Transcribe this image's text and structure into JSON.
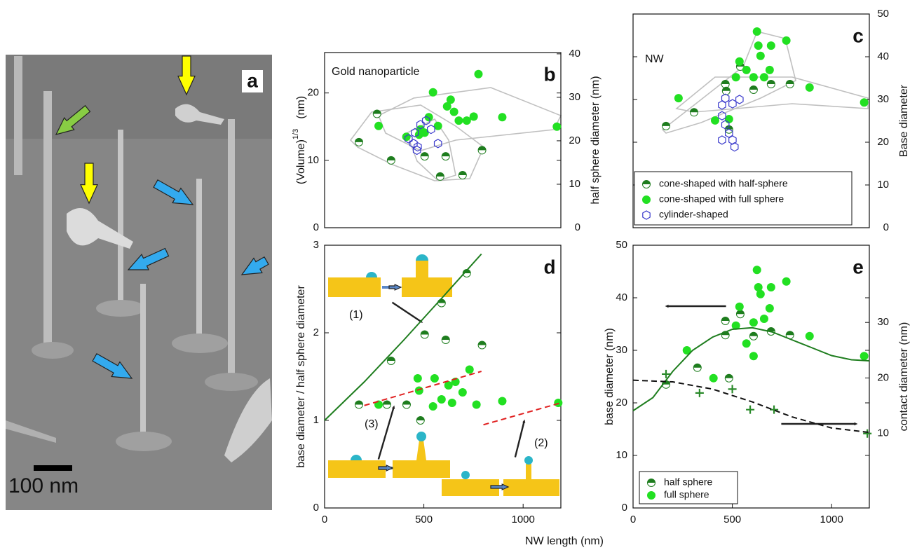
{
  "figure": {
    "panel_a": {
      "label": "a",
      "scale_bar": "100 nm"
    },
    "shared_xlabel": "NW length (nm)"
  },
  "chart_data": [
    {
      "type": "scatter",
      "label": "b",
      "title": "Gold nanoparticle",
      "ylabel": "(Volume)",
      "ylabel_exponent": "1/3",
      "ylabel_unit": "(nm)",
      "y2label": "half sphere diameter (nm)",
      "xlim": [
        0,
        1190
      ],
      "ylim": [
        0,
        26
      ],
      "yticks": [
        0,
        10,
        20
      ],
      "y2lim": [
        0,
        40.3
      ],
      "y2ticks": [
        0,
        10,
        20,
        30,
        40
      ],
      "series": [
        {
          "marker": "half",
          "color": "#1e7d1e",
          "x": [
            173,
            264,
            335,
            504,
            610,
            695,
            793,
            582
          ],
          "values": [
            12.7,
            16.9,
            10.0,
            10.6,
            10.6,
            7.8,
            11.5,
            7.6
          ]
        },
        {
          "marker": "full",
          "color": "#22e022",
          "x": [
            272,
            412,
            476,
            546,
            617,
            635,
            652,
            676,
            716,
            751,
            775,
            895,
            1170,
            525,
            571,
            483,
            504
          ],
          "values": [
            15.1,
            13.5,
            13.8,
            20.1,
            18.0,
            19.0,
            17.2,
            15.9,
            15.9,
            16.5,
            22.8,
            16.4,
            15.0,
            16.4,
            15.1,
            14.6,
            14.1
          ]
        },
        {
          "marker": "hexagon",
          "color": "#3a3acc",
          "x": [
            423,
            448,
            469,
            483,
            511,
            536,
            571,
            465,
            455
          ],
          "values": [
            13.2,
            12.5,
            12.0,
            15.3,
            15.9,
            14.6,
            12.5,
            11.5,
            14.1
          ]
        }
      ]
    },
    {
      "type": "scatter",
      "label": "c",
      "title": "NW",
      "yaxis_side": "right",
      "y2label": "Base diameter",
      "xlim": [
        0,
        1190
      ],
      "ylim": [
        0,
        50
      ],
      "yticks": [
        0,
        10,
        20,
        30,
        40,
        50
      ],
      "legend": "lower-left",
      "series": [
        {
          "name": "cone-shaped with half-sphere",
          "marker": "half",
          "color": "#1e7d1e",
          "x": [
            166,
            307,
            465,
            469,
            607,
            695,
            790,
            540,
            483
          ],
          "values": [
            23.8,
            27.0,
            33.6,
            32.0,
            32.3,
            33.6,
            33.6,
            37.7,
            23.0
          ]
        },
        {
          "name": "cone-shaped with full sphere",
          "marker": "full",
          "color": "#22e022",
          "x": [
            229,
            413,
            483,
            536,
            571,
            624,
            631,
            642,
            695,
            772,
            688,
            660,
            607,
            889,
            1164,
            518
          ],
          "values": [
            30.3,
            25.1,
            25.4,
            38.9,
            36.9,
            45.9,
            42.6,
            40.2,
            42.6,
            43.8,
            36.9,
            35.2,
            35.2,
            32.8,
            29.3,
            35.2
          ]
        },
        {
          "name": "cylinder-shaped",
          "marker": "hexagon",
          "color": "#3a3acc",
          "x": [
            448,
            448,
            465,
            483,
            501,
            511,
            448,
            536,
            501,
            465
          ],
          "values": [
            28.7,
            26.2,
            24.1,
            22.1,
            20.5,
            18.9,
            20.5,
            30.0,
            29.0,
            30.3
          ]
        }
      ]
    },
    {
      "type": "scatter",
      "label": "d",
      "ylabel": "base diameter / half sphere diameter",
      "xlim": [
        0,
        1190
      ],
      "xticks": [
        0,
        500,
        1000
      ],
      "ylim": [
        0,
        3
      ],
      "yticks": [
        0,
        1,
        2,
        3
      ],
      "annotations": [
        "(1)",
        "(3)",
        "(2)"
      ],
      "series": [
        {
          "marker": "half",
          "color": "#1e7d1e",
          "x": [
            173,
            335,
            504,
            610,
            716,
            793,
            589,
            483,
            314,
            413
          ],
          "values": [
            1.18,
            1.68,
            1.98,
            1.92,
            2.68,
            1.86,
            2.34,
            1.0,
            1.18,
            1.18
          ]
        },
        {
          "marker": "full",
          "color": "#22e022",
          "x": [
            272,
            469,
            554,
            624,
            659,
            695,
            730,
            765,
            895,
            1177,
            546,
            476,
            589,
            642
          ],
          "values": [
            1.18,
            1.48,
            1.48,
            1.4,
            1.44,
            1.32,
            1.58,
            1.18,
            1.22,
            1.2,
            1.16,
            1.34,
            1.24,
            1.2
          ]
        },
        {
          "marker": "line",
          "color": "#1e7d1e",
          "x": [
            0,
            200,
            400,
            600,
            790
          ],
          "values": [
            1.0,
            1.44,
            1.92,
            2.42,
            2.9
          ]
        },
        {
          "marker": "dashed",
          "color": "#e02020",
          "x": [
            200,
            790
          ],
          "values": [
            1.17,
            1.56
          ]
        },
        {
          "marker": "dashed",
          "color": "#e02020",
          "x": [
            800,
            1190
          ],
          "values": [
            0.95,
            1.2
          ]
        }
      ]
    },
    {
      "type": "scatter",
      "label": "e",
      "ylabel": "base diameter (nm)",
      "y2label": "contact diameter   (nm)",
      "xlim": [
        0,
        1190
      ],
      "xticks": [
        0,
        500,
        1000
      ],
      "ylim": [
        0,
        50
      ],
      "yticks": [
        0,
        10,
        20,
        30,
        40,
        50
      ],
      "y2lim": [
        -3.4,
        43.9
      ],
      "y2ticks": [
        10,
        20,
        30
      ],
      "legend": "lower-left",
      "series": [
        {
          "name": "half sphere",
          "marker": "half",
          "color": "#1e7d1e",
          "x": [
            166,
            465,
            465,
            607,
            695,
            790,
            540,
            483,
            324
          ],
          "values": [
            23.5,
            35.6,
            32.9,
            32.7,
            33.6,
            32.9,
            36.9,
            24.7,
            26.7
          ]
        },
        {
          "name": "full sphere",
          "marker": "full",
          "color": "#22e022",
          "x": [
            271,
            405,
            536,
            624,
            631,
            642,
            695,
            772,
            688,
            660,
            607,
            889,
            1164,
            518,
            571,
            607
          ],
          "values": [
            30.0,
            24.7,
            38.3,
            45.3,
            42.0,
            40.7,
            42.0,
            43.1,
            38.0,
            36.0,
            35.3,
            32.7,
            28.9,
            34.7,
            31.3,
            28.9
          ]
        },
        {
          "marker": "plus",
          "color": "#2a8a2a",
          "axis": "y2",
          "x": [
            166,
            335,
            500,
            590,
            710,
            1180
          ],
          "values": [
            20.7,
            17.3,
            18.0,
            14.3,
            14.3,
            10.0
          ]
        },
        {
          "marker": "line",
          "color": "#1e7d1e",
          "x": [
            0,
            100,
            200,
            300,
            400,
            500,
            600,
            700,
            800,
            900,
            1000,
            1100,
            1190
          ],
          "values": [
            18.5,
            21,
            26,
            30,
            32.5,
            34,
            34.3,
            33.5,
            32,
            30.5,
            29,
            28.2,
            28
          ]
        },
        {
          "marker": "dashed",
          "color": "#111111",
          "axis": "y2",
          "x": [
            0,
            200,
            400,
            600,
            800,
            1000,
            1190
          ],
          "values": [
            19.6,
            19.3,
            18,
            15.7,
            13,
            11,
            10.2
          ]
        }
      ]
    }
  ]
}
